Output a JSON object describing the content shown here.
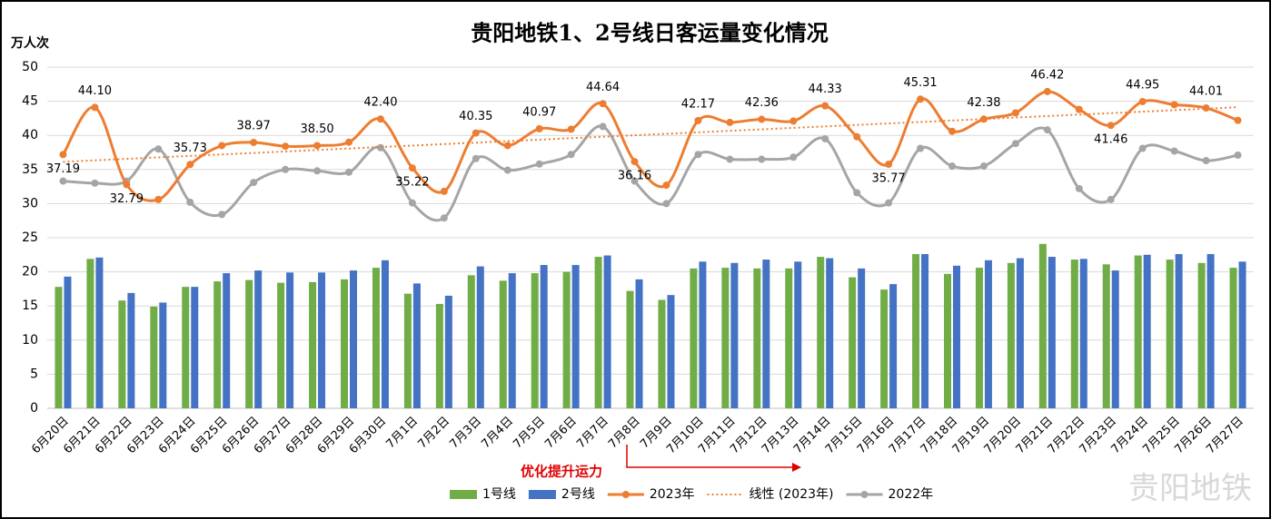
{
  "chart_data": {
    "type": "bar-line",
    "title": "贵阳地铁1、2号线日客运量变化情况",
    "y_axis_label": "万人次",
    "annotation": "优化提升运力",
    "watermark": "贵阳地铁",
    "categories": [
      "6月20日",
      "6月21日",
      "6月22日",
      "6月23日",
      "6月24日",
      "6月25日",
      "6月26日",
      "6月27日",
      "6月28日",
      "6月29日",
      "6月30日",
      "7月1日",
      "7月2日",
      "7月3日",
      "7月4日",
      "7月5日",
      "7月6日",
      "7月7日",
      "7月8日",
      "7月9日",
      "7月10日",
      "7月11日",
      "7月12日",
      "7月13日",
      "7月14日",
      "7月15日",
      "7月16日",
      "7月17日",
      "7月18日",
      "7月19日",
      "7月20日",
      "7月21日",
      "7月22日",
      "7月23日",
      "7月24日",
      "7月25日",
      "7月26日",
      "7月27日"
    ],
    "ylim": [
      0,
      50
    ],
    "yticks": [
      0,
      5,
      10,
      15,
      20,
      25,
      30,
      35,
      40,
      45,
      50
    ],
    "grid": true,
    "legend": "bottom",
    "series": [
      {
        "name": "1号线",
        "type": "bar",
        "color": "#70ad47",
        "values": [
          17.8,
          21.9,
          15.8,
          14.9,
          17.8,
          18.6,
          18.8,
          18.4,
          18.5,
          18.9,
          20.6,
          16.8,
          15.3,
          19.5,
          18.7,
          19.8,
          20.0,
          22.2,
          17.2,
          15.9,
          20.5,
          20.6,
          20.5,
          20.5,
          22.2,
          19.2,
          17.4,
          22.6,
          19.7,
          20.6,
          21.3,
          24.1,
          21.8,
          21.1,
          22.4,
          21.8,
          21.3,
          20.6
        ]
      },
      {
        "name": "2号线",
        "type": "bar",
        "color": "#4472c4",
        "values": [
          19.3,
          22.1,
          16.9,
          15.5,
          17.8,
          19.8,
          20.2,
          19.9,
          19.9,
          20.2,
          21.7,
          18.3,
          16.5,
          20.8,
          19.8,
          21.0,
          21.0,
          22.4,
          18.9,
          16.6,
          21.5,
          21.3,
          21.8,
          21.5,
          22.0,
          20.5,
          18.2,
          22.6,
          20.9,
          21.7,
          22.0,
          22.2,
          21.9,
          20.2,
          22.5,
          22.6,
          22.6,
          21.5
        ]
      },
      {
        "name": "2023年",
        "type": "line",
        "color": "#ed7d31",
        "values": [
          37.19,
          44.1,
          32.79,
          30.6,
          35.73,
          38.5,
          38.97,
          38.4,
          38.5,
          39.0,
          42.4,
          35.22,
          31.8,
          40.35,
          38.5,
          40.97,
          40.9,
          44.64,
          36.16,
          32.7,
          42.17,
          41.9,
          42.36,
          42.1,
          44.33,
          39.8,
          35.77,
          45.31,
          40.6,
          42.38,
          43.3,
          46.42,
          43.8,
          41.46,
          44.95,
          44.5,
          44.01,
          42.2
        ],
        "value_labels": [
          "37.19",
          "44.10",
          "32.79",
          null,
          "35.73",
          null,
          "38.97",
          null,
          "38.50",
          null,
          "42.40",
          "35.22",
          null,
          "40.35",
          null,
          "40.97",
          null,
          "44.64",
          "36.16",
          null,
          "42.17",
          null,
          "42.36",
          null,
          "44.33",
          null,
          "35.77",
          "45.31",
          null,
          "42.38",
          null,
          "46.42",
          null,
          "41.46",
          "44.95",
          null,
          "44.01",
          null
        ],
        "trendline": {
          "name": "线性 (2023年)",
          "color": "#ed7d31"
        }
      },
      {
        "name": "2022年",
        "type": "line",
        "color": "#a5a5a5",
        "values": [
          33.3,
          33.0,
          33.3,
          38.0,
          30.2,
          28.4,
          33.1,
          35.0,
          34.8,
          34.6,
          38.2,
          30.1,
          27.9,
          36.6,
          34.9,
          35.8,
          37.2,
          41.3,
          33.3,
          30.0,
          37.2,
          36.5,
          36.5,
          36.8,
          39.5,
          31.6,
          30.1,
          38.1,
          35.5,
          35.5,
          38.8,
          40.8,
          32.2,
          30.6,
          38.1,
          37.7,
          36.3,
          37.1
        ]
      }
    ]
  }
}
